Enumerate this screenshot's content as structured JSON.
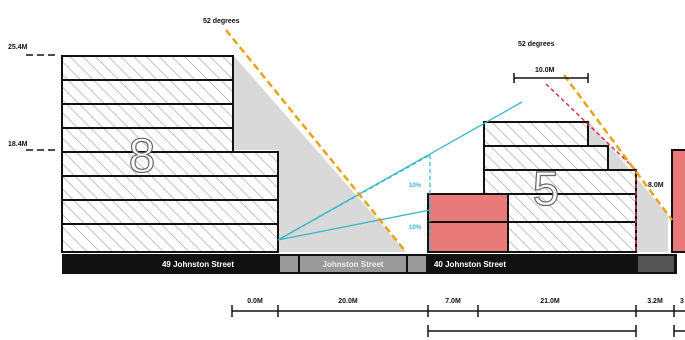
{
  "angles": {
    "left": "52 degrees",
    "right": "52 degrees"
  },
  "levels": {
    "upper": "25.4M",
    "lower": "18.4M"
  },
  "offset_label": "10.0M",
  "height_label": "8.0M",
  "storeys": {
    "left": "8",
    "right": "5"
  },
  "sight_angles": {
    "upper": "10%",
    "lower": "10%"
  },
  "streets": {
    "left": "49 Johnston Street",
    "middle": "Johnston Street",
    "right": "40 Johnston Street"
  },
  "dimensions": [
    "0.0M",
    "20.0M",
    "7.0M",
    "21.0M",
    "3.2M",
    "3"
  ],
  "colors": {
    "angle_line": "#e8a317",
    "sight_line": "#34b9c9",
    "highlight": "#e87a7a",
    "offset_line": "#d9304a",
    "shadow": "#c9c9c9",
    "ground": "#111111"
  }
}
